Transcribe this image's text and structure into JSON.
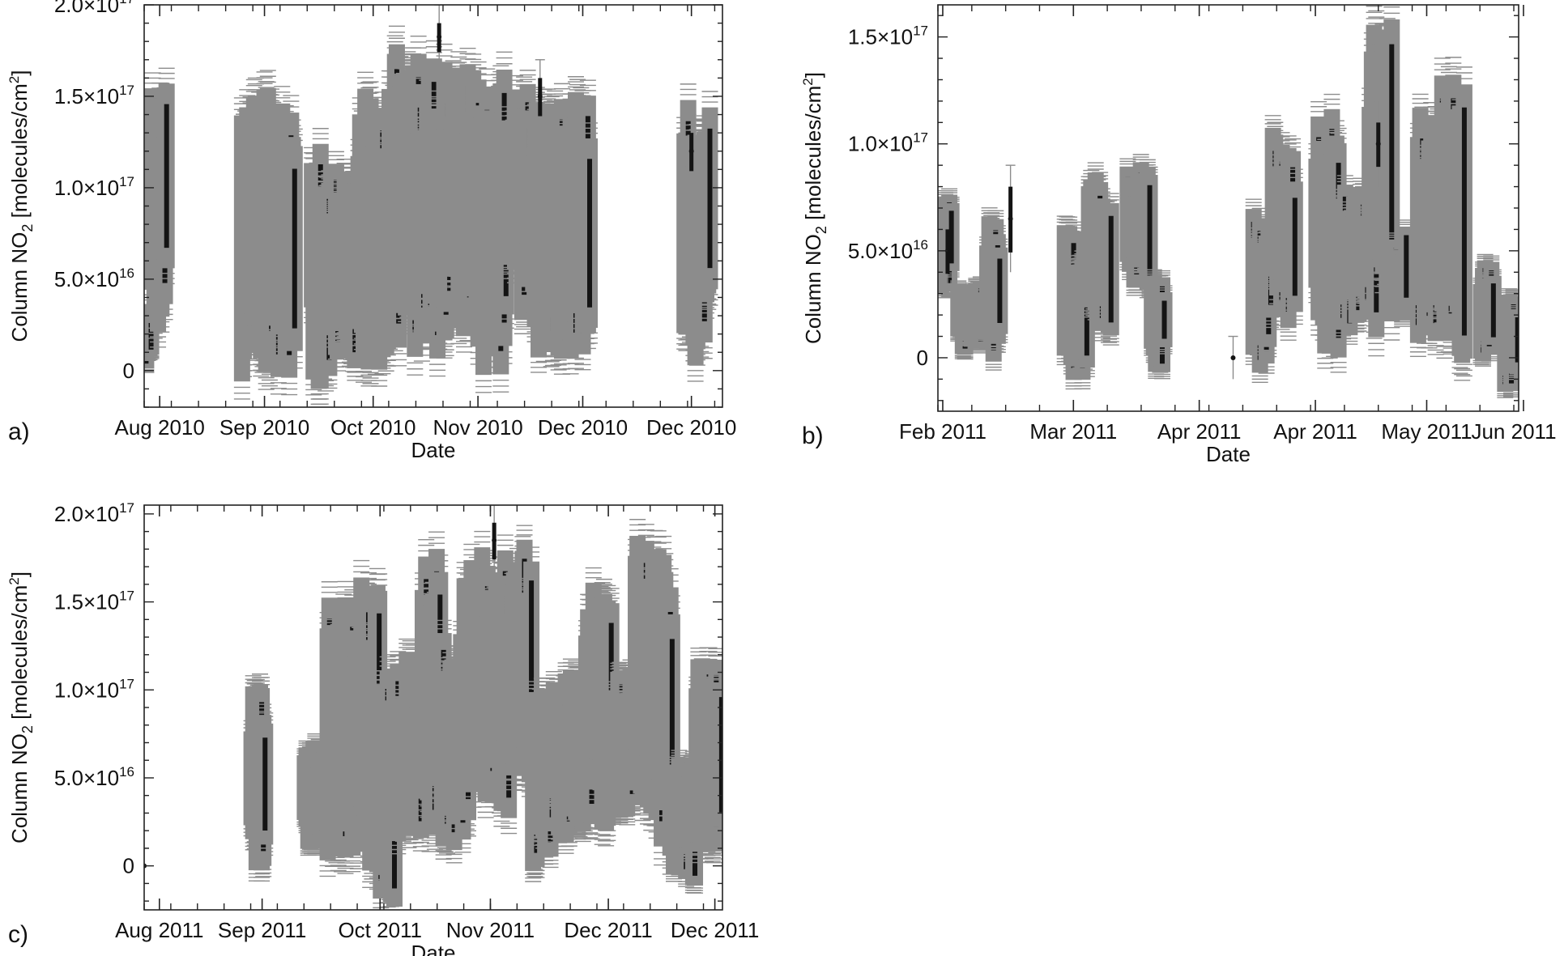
{
  "colors": {
    "errorbar": "#8c8c8c",
    "data": "#141414",
    "axis": "#222222"
  },
  "chart_data": [
    {
      "type": "scatter",
      "panel_label": "a)",
      "xlabel": "Date",
      "ylabel": "Column NO",
      "ylabel_sub": "2",
      "ylabel_unit": " [molecules/cm",
      "ylabel_unit_sup": "2",
      "ylabel_end": "]",
      "ylim": [
        -2e+16,
        2e+17
      ],
      "x_range": [
        "2010-08-01",
        "2010-12-28"
      ],
      "y_ticks": [
        {
          "value": 0,
          "mant": "0",
          "exp": ""
        },
        {
          "value": 5e+16,
          "mant": "5.0×10",
          "exp": "16"
        },
        {
          "value": 1e+17,
          "mant": "1.0×10",
          "exp": "17"
        },
        {
          "value": 1.5e+17,
          "mant": "1.5×10",
          "exp": "17"
        },
        {
          "value": 2e+17,
          "mant": "2.0×10",
          "exp": "17"
        }
      ],
      "x_ticks": [
        {
          "date": "2010-08-05",
          "label": "Aug 2010"
        },
        {
          "date": "2010-09-01",
          "label": "Sep 2010"
        },
        {
          "date": "2010-09-29",
          "label": "Oct 2010"
        },
        {
          "date": "2010-10-26",
          "label": "Nov 2010"
        },
        {
          "date": "2010-11-22",
          "label": "Dec 2010"
        },
        {
          "date": "2010-12-20",
          "label": "Dec 2010"
        }
      ],
      "clusters": [
        {
          "start": "2010-07-31",
          "end": "2010-08-03",
          "low": 0,
          "high": 3.5e+16
        },
        {
          "start": "2010-08-03",
          "end": "2010-08-07",
          "low": 2e+16,
          "high": 1.6e+17
        },
        {
          "start": "2010-08-26",
          "end": "2010-09-03",
          "low": -1e+16,
          "high": 1.5e+17
        },
        {
          "start": "2010-09-03",
          "end": "2010-09-09",
          "low": 0,
          "high": 1.55e+17
        },
        {
          "start": "2010-09-13",
          "end": "2010-09-17",
          "low": -1e+16,
          "high": 1.3e+17
        },
        {
          "start": "2010-09-17",
          "end": "2010-09-25",
          "low": 0,
          "high": 1.1e+17
        },
        {
          "start": "2010-09-25",
          "end": "2010-10-03",
          "low": 0,
          "high": 1.5e+17
        },
        {
          "start": "2010-10-03",
          "end": "2010-10-10",
          "low": 1e+16,
          "high": 1.75e+17
        },
        {
          "start": "2010-10-10",
          "end": "2010-10-18",
          "low": 1e+16,
          "high": 1.7e+17
        },
        {
          "start": "2010-10-18",
          "end": "2010-10-25",
          "low": 2e+16,
          "high": 1.65e+17
        },
        {
          "start": "2010-10-25",
          "end": "2010-11-02",
          "low": 0,
          "high": 1.6e+17
        },
        {
          "start": "2010-11-02",
          "end": "2010-11-09",
          "low": 3e+16,
          "high": 1.55e+17
        },
        {
          "start": "2010-11-09",
          "end": "2010-11-16",
          "low": 1e+16,
          "high": 1.45e+17
        },
        {
          "start": "2010-11-16",
          "end": "2010-11-24",
          "low": 1e+16,
          "high": 1.5e+17
        },
        {
          "start": "2010-12-18",
          "end": "2010-12-25",
          "low": 0,
          "high": 1.45e+17
        }
      ],
      "markers": [
        {
          "date": "2010-10-16",
          "low": 1.75e+17,
          "high": 1.9e+17
        },
        {
          "date": "2010-11-11",
          "low": 1.4e+17,
          "high": 1.6e+17
        },
        {
          "date": "2010-12-20",
          "low": 1.1e+17,
          "high": 1.3e+17
        }
      ]
    },
    {
      "type": "scatter",
      "panel_label": "b)",
      "xlabel": "Date",
      "ylabel": "Column NO",
      "ylabel_sub": "2",
      "ylabel_unit": " [molecules/cm",
      "ylabel_unit_sup": "2",
      "ylabel_end": "]",
      "ylim": [
        -2.5e+16,
        1.65e+17
      ],
      "x_range": [
        "2011-02-01",
        "2011-06-01"
      ],
      "y_ticks": [
        {
          "value": 0,
          "mant": "0",
          "exp": ""
        },
        {
          "value": 5e+16,
          "mant": "5.0×10",
          "exp": "16"
        },
        {
          "value": 1e+17,
          "mant": "1.0×10",
          "exp": "17"
        },
        {
          "value": 1.5e+17,
          "mant": "1.5×10",
          "exp": "17"
        }
      ],
      "x_ticks": [
        {
          "date": "2011-02-02",
          "label": "Feb 2011"
        },
        {
          "date": "2011-03-01",
          "label": "Mar 2011"
        },
        {
          "date": "2011-03-27",
          "label": "Apr 2011"
        },
        {
          "date": "2011-04-20",
          "label": "Apr 2011"
        },
        {
          "date": "2011-05-13",
          "label": "May 2011"
        },
        {
          "date": "2011-06-02",
          "label": "Jun 2011"
        }
      ],
      "clusters": [
        {
          "start": "2011-02-01",
          "end": "2011-02-04",
          "low": 3e+16,
          "high": 7.5e+16
        },
        {
          "start": "2011-02-05",
          "end": "2011-02-11",
          "low": 0,
          "high": 3.5e+16
        },
        {
          "start": "2011-02-11",
          "end": "2011-02-14",
          "low": 0,
          "high": 6.5e+16
        },
        {
          "start": "2011-02-27",
          "end": "2011-03-04",
          "low": -1e+16,
          "high": 6e+16
        },
        {
          "start": "2011-03-04",
          "end": "2011-03-09",
          "low": 1e+16,
          "high": 8.5e+16
        },
        {
          "start": "2011-03-12",
          "end": "2011-03-17",
          "low": 3e+16,
          "high": 9e+16
        },
        {
          "start": "2011-03-17",
          "end": "2011-03-20",
          "low": -1e+16,
          "high": 4e+16
        },
        {
          "start": "2011-04-07",
          "end": "2011-04-11",
          "low": -5000000000000000.0,
          "high": 7e+16
        },
        {
          "start": "2011-04-11",
          "end": "2011-04-16",
          "low": 1e+16,
          "high": 1.05e+17
        },
        {
          "start": "2011-04-20",
          "end": "2011-04-25",
          "low": 0,
          "high": 1.15e+17
        },
        {
          "start": "2011-04-25",
          "end": "2011-05-01",
          "low": 1e+16,
          "high": 8e+16
        },
        {
          "start": "2011-05-01",
          "end": "2011-05-06",
          "low": 1e+16,
          "high": 1.55e+17
        },
        {
          "start": "2011-05-06",
          "end": "2011-05-09",
          "low": 1e+16,
          "high": 6e+16
        },
        {
          "start": "2011-05-11",
          "end": "2011-05-16",
          "low": 1e+16,
          "high": 1.15e+17
        },
        {
          "start": "2011-05-16",
          "end": "2011-05-21",
          "low": 0,
          "high": 1.35e+17
        },
        {
          "start": "2011-05-24",
          "end": "2011-05-27",
          "low": 0,
          "high": 4.5e+16
        },
        {
          "start": "2011-05-29",
          "end": "2011-06-01",
          "low": -1.5e+16,
          "high": 3e+16
        }
      ],
      "markers": [
        {
          "date": "2011-02-03",
          "low": 4e+16,
          "high": 6e+16
        },
        {
          "date": "2011-02-16",
          "low": 5e+16,
          "high": 8e+16
        },
        {
          "date": "2011-04-03",
          "low": 0,
          "high": 0
        },
        {
          "date": "2011-05-03",
          "low": 9e+16,
          "high": 1.1e+17
        }
      ]
    },
    {
      "type": "scatter",
      "panel_label": "c)",
      "xlabel": "Date",
      "ylabel": "Column NO",
      "ylabel_sub": "2",
      "ylabel_unit": " [molecules/cm",
      "ylabel_unit_sup": "2",
      "ylabel_end": "]",
      "ylim": [
        -2.5e+16,
        2.05e+17
      ],
      "x_range": [
        "2011-08-01",
        "2011-12-31"
      ],
      "y_ticks": [
        {
          "value": 0,
          "mant": "0",
          "exp": ""
        },
        {
          "value": 5e+16,
          "mant": "5.0×10",
          "exp": "16"
        },
        {
          "value": 1e+17,
          "mant": "1.0×10",
          "exp": "17"
        },
        {
          "value": 1.5e+17,
          "mant": "1.5×10",
          "exp": "17"
        },
        {
          "value": 2e+17,
          "mant": "2.0×10",
          "exp": "17"
        }
      ],
      "x_ticks": [
        {
          "date": "2011-08-05",
          "label": "Aug 2011"
        },
        {
          "date": "2011-09-01",
          "label": "Sep 2011"
        },
        {
          "date": "2011-10-02",
          "label": "Oct 2011"
        },
        {
          "date": "2011-10-31",
          "label": "Nov 2011"
        },
        {
          "date": "2011-12-01",
          "label": "Dec 2011"
        },
        {
          "date": "2011-12-29",
          "label": "Dec 2011"
        }
      ],
      "clusters": [
        {
          "start": "2011-08-29",
          "end": "2011-09-02",
          "low": 0,
          "high": 1e+17
        },
        {
          "start": "2011-09-12",
          "end": "2011-09-18",
          "low": 1e+16,
          "high": 7e+16
        },
        {
          "start": "2011-09-18",
          "end": "2011-09-25",
          "low": 0,
          "high": 1.5e+17
        },
        {
          "start": "2011-09-25",
          "end": "2011-10-02",
          "low": 0,
          "high": 1.6e+17
        },
        {
          "start": "2011-10-02",
          "end": "2011-10-06",
          "low": -2e+16,
          "high": 1.1e+17
        },
        {
          "start": "2011-10-06",
          "end": "2011-10-13",
          "low": 0,
          "high": 1.2e+17
        },
        {
          "start": "2011-10-13",
          "end": "2011-10-18",
          "low": 2e+16,
          "high": 1.8e+17
        },
        {
          "start": "2011-10-18",
          "end": "2011-10-24",
          "low": 1e+16,
          "high": 1.3e+17
        },
        {
          "start": "2011-10-24",
          "end": "2011-10-30",
          "low": 3e+16,
          "high": 1.8e+17
        },
        {
          "start": "2011-10-30",
          "end": "2011-11-06",
          "low": 3e+16,
          "high": 1.75e+17
        },
        {
          "start": "2011-11-06",
          "end": "2011-11-11",
          "low": 5e+16,
          "high": 1.85e+17
        },
        {
          "start": "2011-11-11",
          "end": "2011-11-16",
          "low": 0,
          "high": 1e+17
        },
        {
          "start": "2011-11-16",
          "end": "2011-11-25",
          "low": 1e+16,
          "high": 1.1e+17
        },
        {
          "start": "2011-11-25",
          "end": "2011-12-02",
          "low": 2e+16,
          "high": 1.6e+17
        },
        {
          "start": "2011-12-02",
          "end": "2011-12-08",
          "low": 3e+16,
          "high": 1.1e+17
        },
        {
          "start": "2011-12-08",
          "end": "2011-12-13",
          "low": 3e+16,
          "high": 1.85e+17
        },
        {
          "start": "2011-12-13",
          "end": "2011-12-18",
          "low": 0,
          "high": 1.75e+17
        },
        {
          "start": "2011-12-18",
          "end": "2011-12-24",
          "low": -1e+16,
          "high": 6e+16
        },
        {
          "start": "2011-12-24",
          "end": "2011-12-31",
          "low": 1e+16,
          "high": 1.15e+17
        }
      ],
      "markers": [
        {
          "date": "2011-08-01",
          "low": 0,
          "high": 0
        },
        {
          "date": "2011-11-01",
          "low": 1.75e+17,
          "high": 1.95e+17
        }
      ]
    }
  ]
}
